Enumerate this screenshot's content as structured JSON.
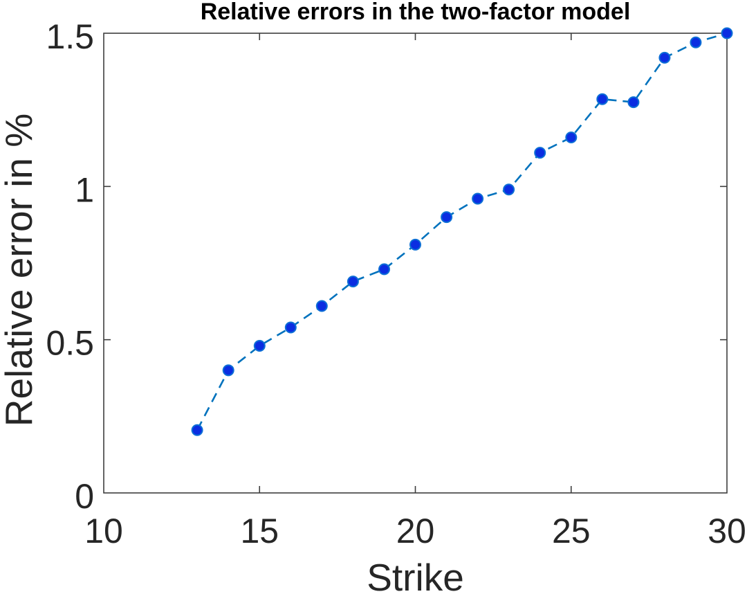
{
  "chart_data": {
    "type": "line",
    "title": "Relative errors in the two-factor model",
    "xlabel": "Strike",
    "ylabel": "Relative error in %",
    "x": [
      13,
      14,
      15,
      16,
      17,
      18,
      19,
      20,
      21,
      22,
      23,
      24,
      25,
      26,
      27,
      28,
      29,
      30
    ],
    "y": [
      0.205,
      0.4,
      0.48,
      0.54,
      0.61,
      0.69,
      0.73,
      0.81,
      0.9,
      0.96,
      0.99,
      1.11,
      1.16,
      1.285,
      1.275,
      1.42,
      1.47,
      1.5
    ],
    "series_name": "relative-error",
    "xlim": [
      10,
      30
    ],
    "ylim": [
      0,
      1.5
    ],
    "xticks": [
      10,
      15,
      20,
      25,
      30
    ],
    "xtick_labels": [
      "10",
      "15",
      "20",
      "25",
      "30"
    ],
    "yticks": [
      0,
      0.5,
      1,
      1.5
    ],
    "ytick_labels": [
      "0",
      "0.5",
      "1",
      "1.5"
    ],
    "grid": false,
    "legend": "none",
    "line_style": "dashed",
    "marker": "filled-circle",
    "colors": {
      "line": "#0072bd",
      "marker_fill": "#0b2de1",
      "marker_edge": "#0d6fd6",
      "axis": "#3d3d3d",
      "tick_label": "#262626",
      "title": "#000000"
    }
  }
}
